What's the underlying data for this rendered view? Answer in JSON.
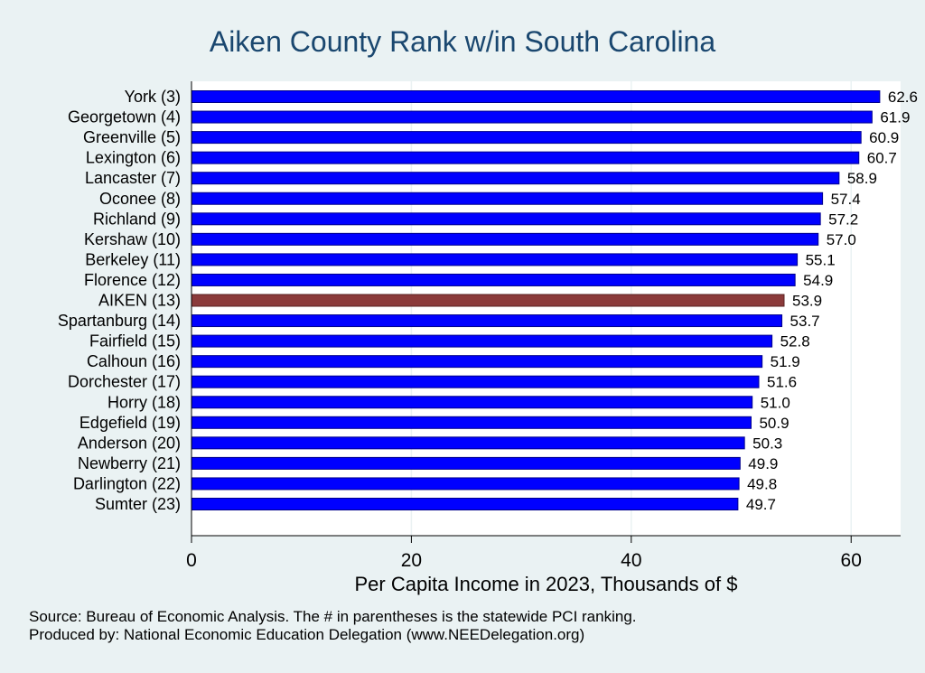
{
  "chart_data": {
    "type": "bar",
    "orientation": "horizontal",
    "title": "Aiken County Rank w/in South Carolina",
    "xlabel": "Per Capita Income in 2023, Thousands of $",
    "ylabel": "",
    "xlim": [
      0,
      64.5
    ],
    "xticks": [
      0,
      20,
      40,
      60
    ],
    "grid": true,
    "categories": [
      "York  (3)",
      "Georgetown  (4)",
      "Greenville  (5)",
      "Lexington  (6)",
      "Lancaster  (7)",
      "Oconee  (8)",
      "Richland  (9)",
      "Kershaw (10)",
      "Berkeley (11)",
      "Florence (12)",
      "AIKEN (13)",
      "Spartanburg (14)",
      "Fairfield (15)",
      "Calhoun (16)",
      "Dorchester (17)",
      "Horry (18)",
      "Edgefield (19)",
      "Anderson (20)",
      "Newberry (21)",
      "Darlington (22)",
      "Sumter (23)"
    ],
    "values": [
      62.6,
      61.9,
      60.9,
      60.7,
      58.9,
      57.4,
      57.2,
      57.0,
      55.1,
      54.9,
      53.9,
      53.7,
      52.8,
      51.9,
      51.6,
      51.0,
      50.9,
      50.3,
      49.9,
      49.8,
      49.7
    ],
    "value_labels": [
      "62.6",
      "61.9",
      "60.9",
      "60.7",
      "58.9",
      "57.4",
      "57.2",
      "57.0",
      "55.1",
      "54.9",
      "53.9",
      "53.7",
      "52.8",
      "51.9",
      "51.6",
      "51.0",
      "50.9",
      "50.3",
      "49.9",
      "49.8",
      "49.7"
    ],
    "highlight": "AIKEN (13)",
    "colors": {
      "bar": "#0000ff",
      "bar_stroke": "#00008b",
      "highlight": "#8b3a3a",
      "grid": "#ffffff",
      "background": "#eaf2f3",
      "title": "#1a476f"
    }
  },
  "notes": {
    "source": "Source: Bureau of Economic Analysis. The # in parentheses is the statewide PCI ranking.",
    "producer": "Produced by: National Economic Education Delegation (www.NEEDelegation.org)"
  }
}
